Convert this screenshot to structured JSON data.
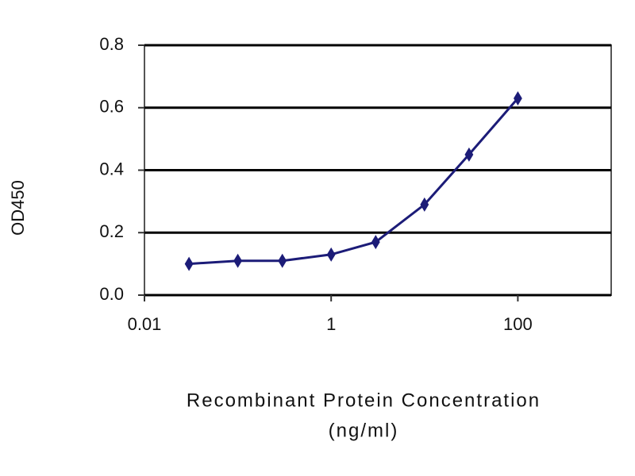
{
  "chart_data": {
    "type": "line",
    "ylabel": "OD450",
    "xlabel": [
      "Recombinant Protein Concentration",
      "(ng/ml)"
    ],
    "x": [
      0.03,
      0.1,
      0.3,
      1,
      3,
      10,
      30,
      100
    ],
    "series": [
      {
        "color": "#1c1c78",
        "values": [
          0.1,
          0.11,
          0.11,
          0.13,
          0.17,
          0.29,
          0.45,
          0.63
        ]
      }
    ],
    "xscale": "log",
    "xlim": [
      0.01,
      1000
    ],
    "xticks": [
      0.01,
      1,
      100
    ],
    "ylim": [
      0,
      0.8
    ],
    "yticks": [
      {
        "value": 0,
        "label": "0.0"
      },
      0.2,
      0.4,
      0.6,
      0.8
    ],
    "grid": true
  }
}
